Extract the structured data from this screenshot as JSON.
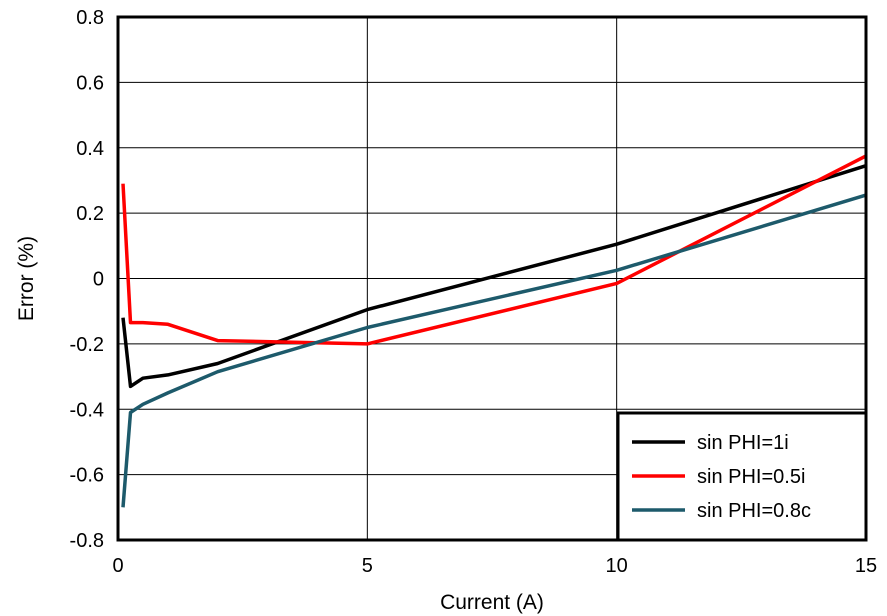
{
  "chart_data": {
    "type": "line",
    "xlabel": "Current (A)",
    "ylabel": "Error (%)",
    "xlim": [
      0,
      15
    ],
    "ylim": [
      -0.8,
      0.8
    ],
    "xticks": [
      0,
      5,
      10,
      15
    ],
    "xtick_labels": [
      "0",
      "5",
      "10",
      "15"
    ],
    "yticks": [
      -0.8,
      -0.6,
      -0.4,
      -0.2,
      0,
      0.2,
      0.4,
      0.6,
      0.8
    ],
    "ytick_labels": [
      "-0.8",
      "-0.6",
      "-0.4",
      "-0.2",
      "0",
      "0.2",
      "0.4",
      "0.6",
      "0.8"
    ],
    "grid": true,
    "legend_position": "bottom-right",
    "series": [
      {
        "name": "sin PHI=1i",
        "color": "#000000",
        "x": [
          0.1,
          0.25,
          0.5,
          1,
          2,
          5,
          10,
          15
        ],
        "y": [
          -0.12,
          -0.33,
          -0.305,
          -0.295,
          -0.26,
          -0.095,
          0.105,
          0.345
        ]
      },
      {
        "name": "sin PHI=0.5i",
        "color": "#ff0000",
        "x": [
          0.1,
          0.25,
          0.5,
          1,
          2,
          5,
          10,
          15
        ],
        "y": [
          0.29,
          -0.135,
          -0.135,
          -0.14,
          -0.19,
          -0.2,
          -0.015,
          0.375
        ]
      },
      {
        "name": "sin PHI=0.8c",
        "color": "#1d5a6b",
        "x": [
          0.1,
          0.25,
          0.5,
          1,
          2,
          5,
          10,
          15
        ],
        "y": [
          -0.7,
          -0.41,
          -0.385,
          -0.35,
          -0.285,
          -0.15,
          0.025,
          0.255
        ]
      }
    ]
  }
}
